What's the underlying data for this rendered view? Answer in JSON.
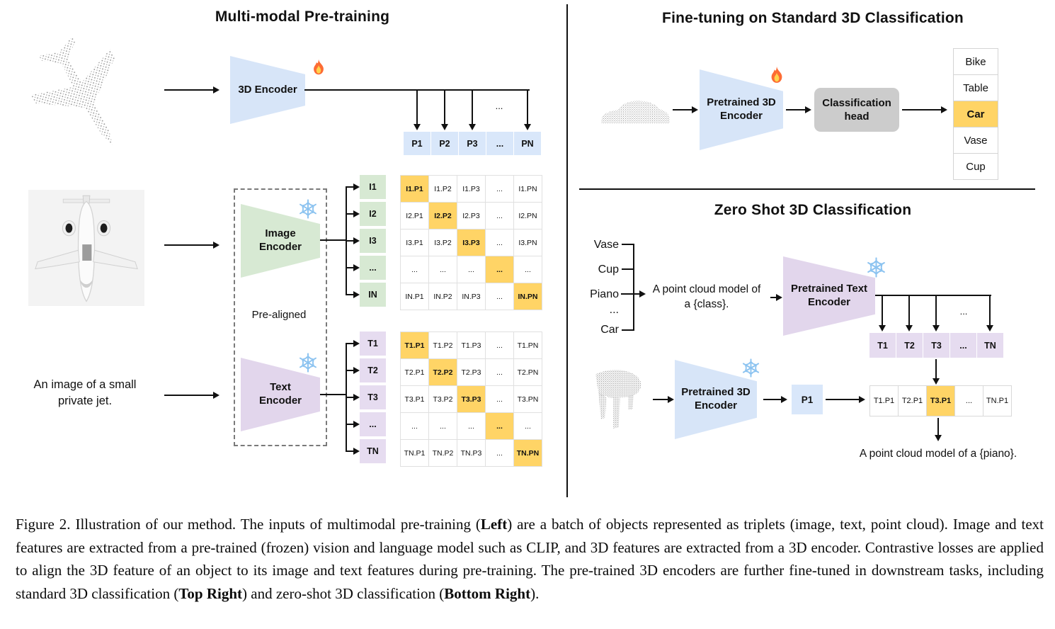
{
  "colors": {
    "highlight": "#FFD466",
    "blue": "#d7e5f8",
    "bluecell": "#d9e7fa",
    "green": "#d7e9d3",
    "purple": "#e2d6ec",
    "purplecell": "#e6dcf0",
    "gray": "#cccccc"
  },
  "pretraining": {
    "title": "Multi-modal Pre-training",
    "encoder_3d": {
      "label": "3D Encoder",
      "status_icon": "fire-icon"
    },
    "image_encoder": {
      "label_line1": "Image",
      "label_line2": "Encoder",
      "status_icon": "snowflake-icon"
    },
    "text_encoder": {
      "label_line1": "Text",
      "label_line2": "Encoder",
      "status_icon": "snowflake-icon"
    },
    "prealigned_label": "Pre-aligned",
    "text_input": {
      "line1": "An image of a small",
      "line2": "private jet."
    },
    "ellipsis": "...",
    "p_row": [
      "P1",
      "P2",
      "P3",
      "...",
      "PN"
    ],
    "i_labels": [
      "I1",
      "I2",
      "I3",
      "...",
      "IN"
    ],
    "i_matrix": [
      [
        "I1.P1",
        "I1.P2",
        "I1.P3",
        "...",
        "I1.PN"
      ],
      [
        "I2.P1",
        "I2.P2",
        "I2.P3",
        "...",
        "I2.PN"
      ],
      [
        "I3.P1",
        "I3.P2",
        "I3.P3",
        "...",
        "I3.PN"
      ],
      [
        "...",
        "...",
        "...",
        "...",
        "..."
      ],
      [
        "IN.P1",
        "IN.P2",
        "IN.P3",
        "...",
        "IN.PN"
      ]
    ],
    "t_labels": [
      "T1",
      "T2",
      "T3",
      "...",
      "TN"
    ],
    "t_matrix": [
      [
        "T1.P1",
        "T1.P2",
        "T1.P3",
        "...",
        "T1.PN"
      ],
      [
        "T2.P1",
        "T2.P2",
        "T2.P3",
        "...",
        "T2.PN"
      ],
      [
        "T3.P1",
        "T3.P2",
        "T3.P3",
        "...",
        "T3.PN"
      ],
      [
        "...",
        "...",
        "...",
        "...",
        "..."
      ],
      [
        "TN.P1",
        "TN.P2",
        "TN.P3",
        "...",
        "TN.PN"
      ]
    ],
    "point_cloud_object": "airplane-point-cloud",
    "image_object": "jet-top-view-image"
  },
  "finetuning": {
    "title": "Fine-tuning on Standard 3D Classification",
    "encoder": {
      "label_line1": "Pretrained 3D",
      "label_line2": "Encoder",
      "status_icon": "fire-icon"
    },
    "head": {
      "label_line1": "Classification",
      "label_line2": "head"
    },
    "classes": [
      "Bike",
      "Table",
      "Car",
      "Vase",
      "Cup"
    ],
    "predicted_class": "Car",
    "point_cloud_object": "car-point-cloud"
  },
  "zeroshot": {
    "title": "Zero Shot 3D Classification",
    "candidate_classes": [
      "Vase",
      "Cup",
      "Piano",
      "...",
      "Car"
    ],
    "prompt_line1": "A point cloud model of",
    "prompt_line2": "a {class}.",
    "text_encoder": {
      "label_line1": "Pretrained Text",
      "label_line2": "Encoder",
      "status_icon": "snowflake-icon"
    },
    "encoder_3d": {
      "label_line1": "Pretrained 3D",
      "label_line2": "Encoder",
      "status_icon": "snowflake-icon"
    },
    "ellipsis": "...",
    "t_row": [
      "T1",
      "T2",
      "T3",
      "...",
      "TN"
    ],
    "p_box": "P1",
    "similarity_row": [
      "T1.P1",
      "T2.P1",
      "T3.P1",
      "...",
      "TN.P1"
    ],
    "highlighted_similarity": "T3.P1",
    "result_text": "A point cloud model of a {piano}.",
    "point_cloud_object": "piano-point-cloud"
  },
  "caption": {
    "segments": [
      {
        "text": "Figure 2. Illustration of our method. The inputs of multimodal pre-training (",
        "bold": false
      },
      {
        "text": "Left",
        "bold": true
      },
      {
        "text": ") are a batch of objects represented as triplets (image, text, point cloud). Image and text features are extracted from a pre-trained (frozen) vision and language model such as CLIP, and 3D features are extracted from a 3D encoder. Contrastive losses are applied to align the 3D feature of an object to its image and text features during pre-training. The pre-trained 3D encoders are further fine-tuned in downstream tasks, including standard 3D classification (",
        "bold": false
      },
      {
        "text": "Top Right",
        "bold": true
      },
      {
        "text": ") and zero-shot 3D classification (",
        "bold": false
      },
      {
        "text": "Bottom Right",
        "bold": true
      },
      {
        "text": ").",
        "bold": false
      }
    ]
  }
}
